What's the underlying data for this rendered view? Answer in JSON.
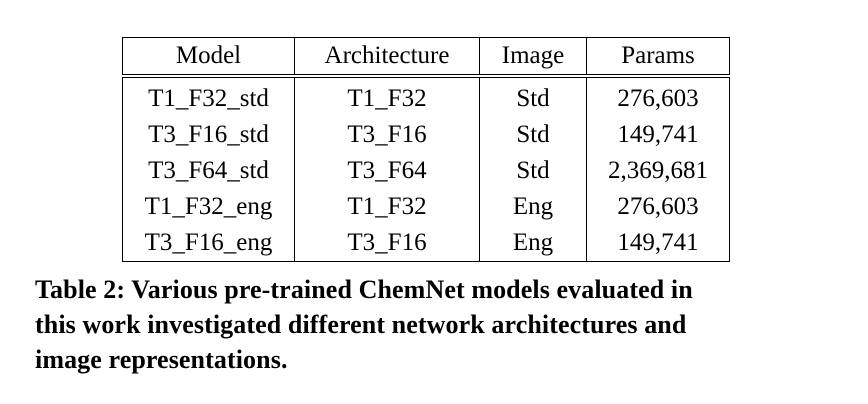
{
  "table": {
    "headers": [
      "Model",
      "Architecture",
      "Image",
      "Params"
    ],
    "rows": [
      [
        "T1_F32_std",
        "T1_F32",
        "Std",
        "276,603"
      ],
      [
        "T3_F16_std",
        "T3_F16",
        "Std",
        "149,741"
      ],
      [
        "T3_F64_std",
        "T3_F64",
        "Std",
        "2,369,681"
      ],
      [
        "T1_F32_eng",
        "T1_F32",
        "Eng",
        "276,603"
      ],
      [
        "T3_F16_eng",
        "T3_F16",
        "Eng",
        "149,741"
      ]
    ]
  },
  "caption": {
    "line1": "Table 2: Various pre-trained ChemNet models evaluated in",
    "line2": "this work investigated different network architectures and",
    "line3": "image representations."
  }
}
